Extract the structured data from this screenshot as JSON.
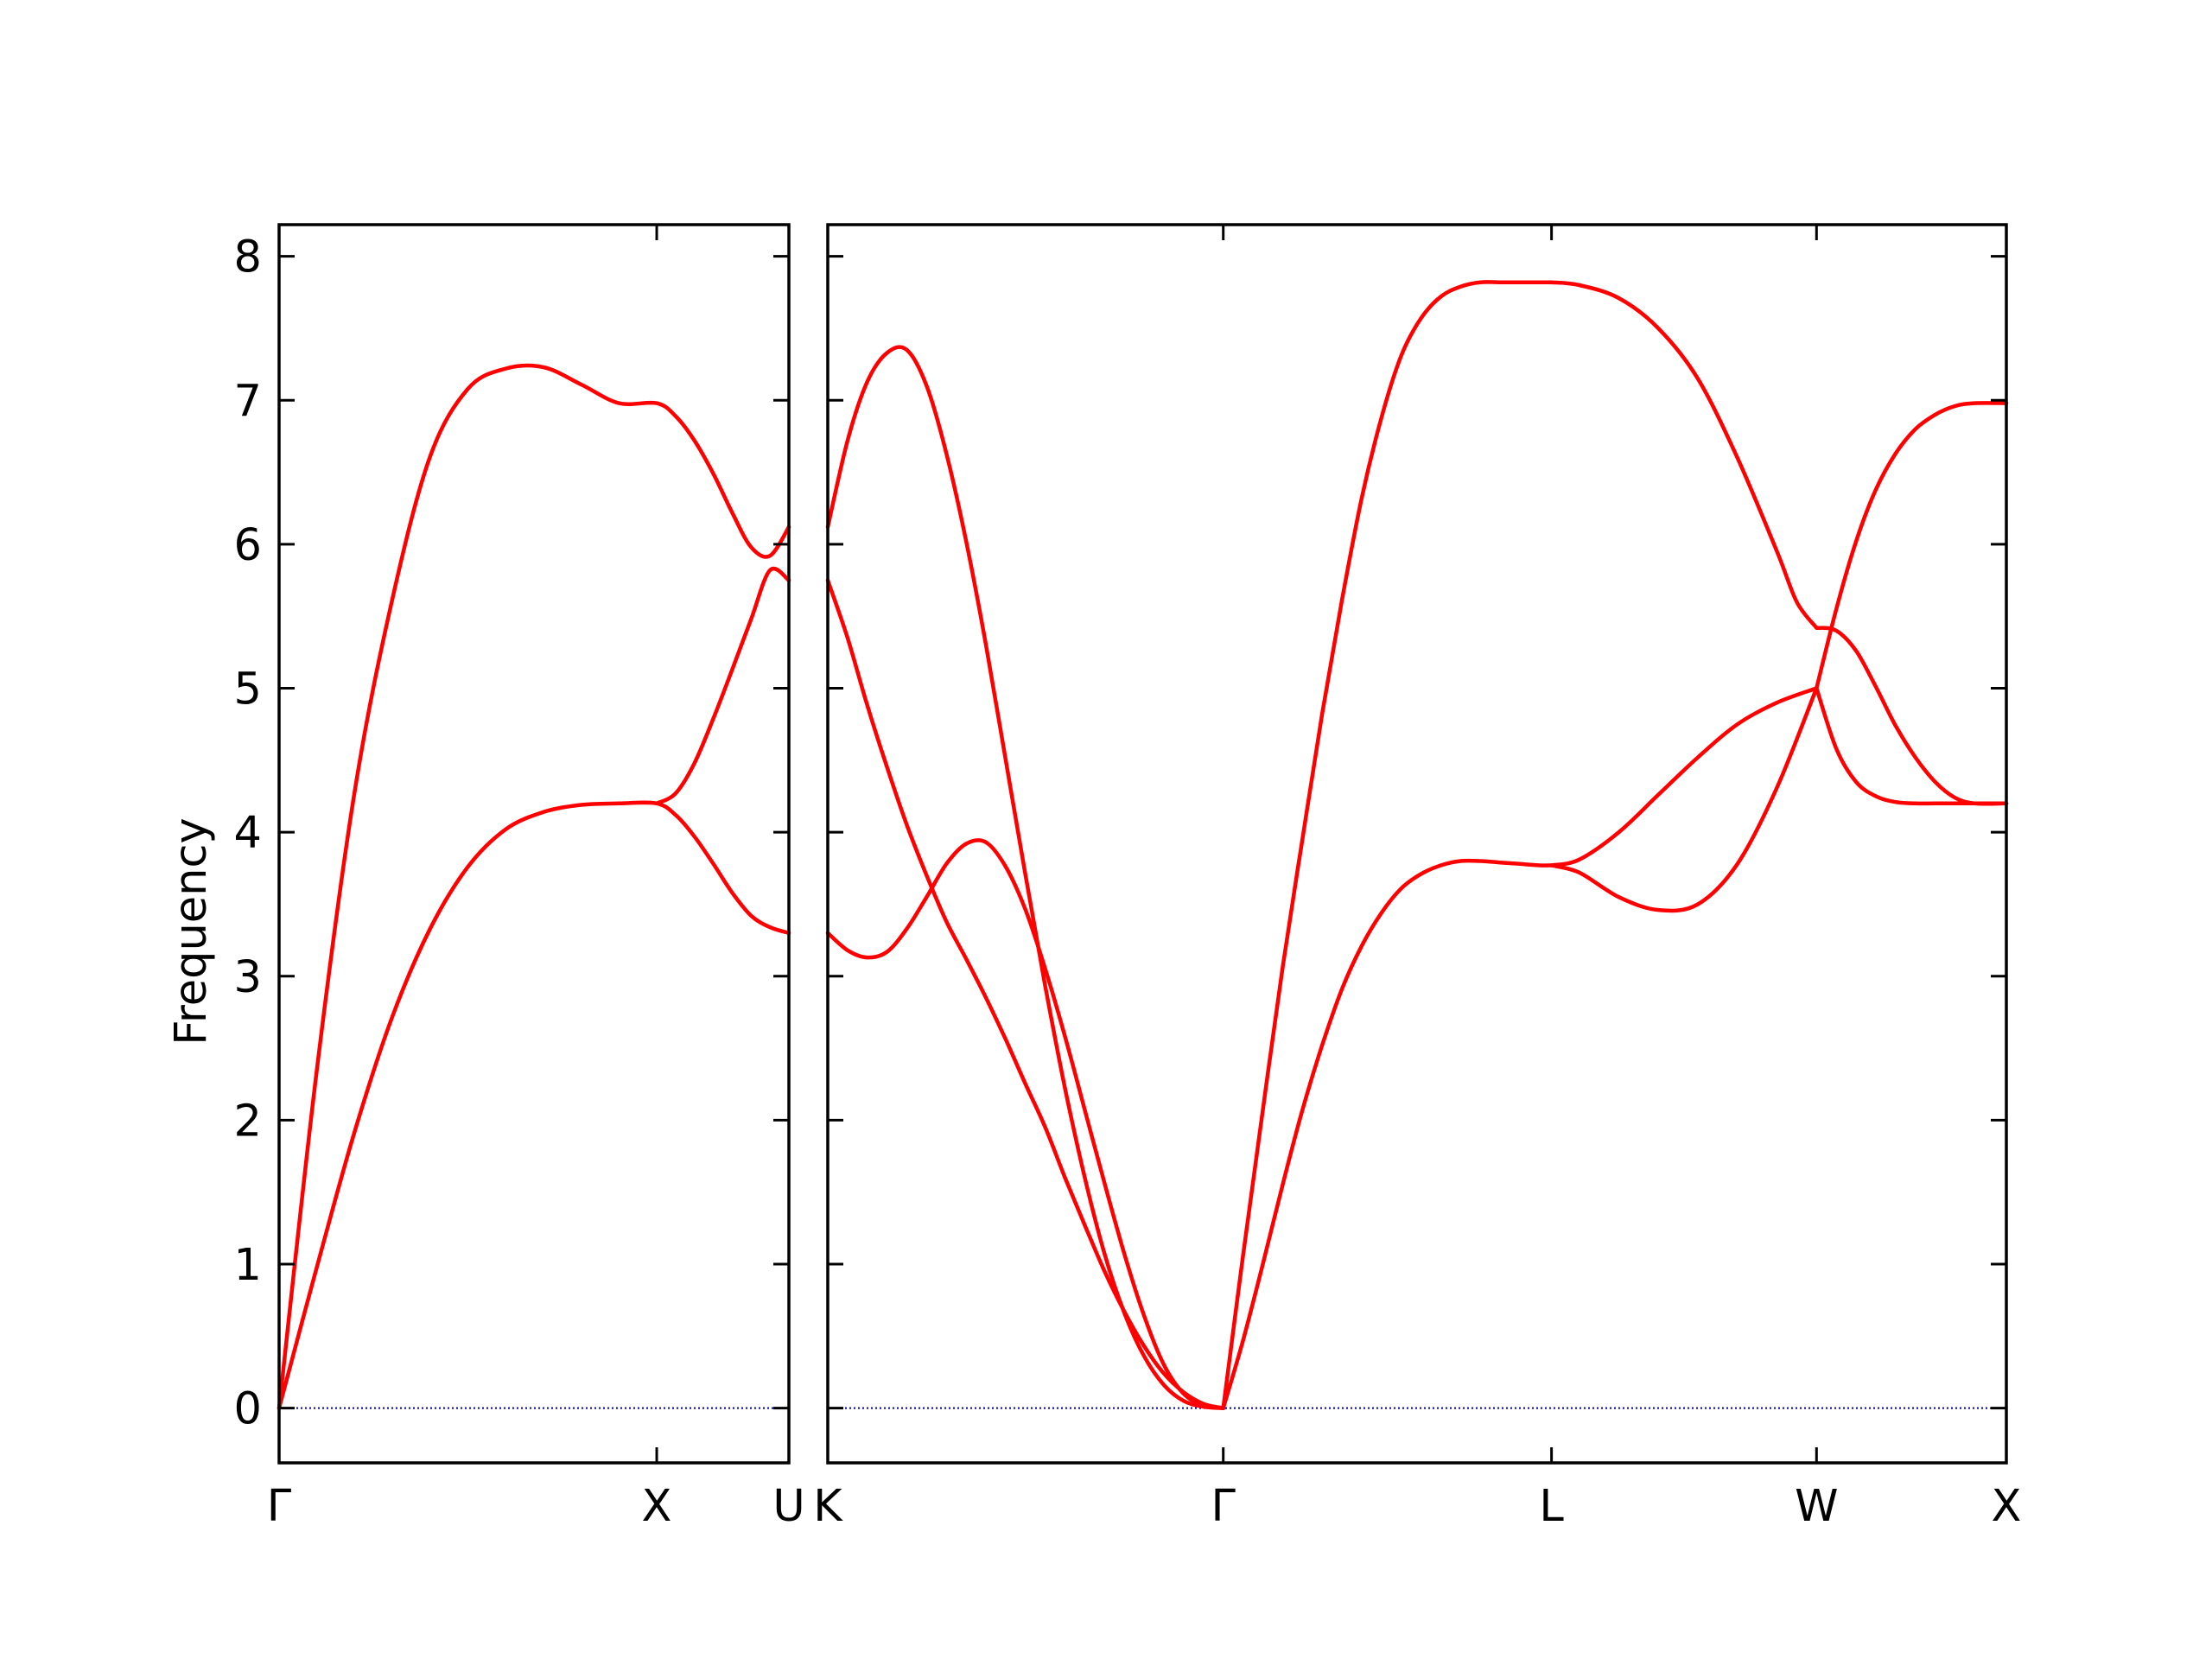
{
  "chart_data": {
    "type": "line",
    "ylabel": "Frequency",
    "ylim": [
      -0.38,
      8.22
    ],
    "yticks": [
      0,
      1,
      2,
      3,
      4,
      5,
      6,
      7,
      8
    ],
    "grid": false,
    "legend": "none",
    "colors": {
      "bands": "#ff0000",
      "zero_line": "#0000aa",
      "axes": "#000000"
    },
    "panels": [
      {
        "xlim": [
          0,
          1.35
        ],
        "xticks": [
          {
            "x": 0,
            "label": "Γ"
          },
          {
            "x": 1.0,
            "label": "X"
          },
          {
            "x": 1.35,
            "label": "U"
          }
        ],
        "series": [
          {
            "x": [
              0,
              0.1,
              0.2,
              0.3,
              0.4,
              0.5,
              0.6,
              0.7,
              0.8,
              0.9,
              1.0,
              1.05,
              1.1,
              1.15,
              1.2,
              1.25,
              1.3,
              1.35
            ],
            "values": [
              0,
              0.98,
              1.92,
              2.72,
              3.33,
              3.76,
              4.02,
              4.14,
              4.19,
              4.2,
              4.2,
              4.12,
              3.97,
              3.78,
              3.58,
              3.42,
              3.34,
              3.3
            ]
          },
          {
            "x": [
              0,
              0.1,
              0.2,
              0.3,
              0.4,
              0.5,
              0.6,
              0.7,
              0.8,
              0.9,
              1.0,
              1.05,
              1.1,
              1.15,
              1.2,
              1.25,
              1.3,
              1.35
            ],
            "values": [
              0,
              2.35,
              4.28,
              5.62,
              6.61,
              7.08,
              7.22,
              7.23,
              7.11,
              6.98,
              6.98,
              6.89,
              6.72,
              6.49,
              6.22,
              5.98,
              5.92,
              6.12
            ]
          },
          {
            "x": [
              1.0,
              1.05,
              1.1,
              1.15,
              1.2,
              1.25,
              1.3,
              1.35
            ],
            "values": [
              4.2,
              4.27,
              4.48,
              4.79,
              5.13,
              5.48,
              5.82,
              5.75
            ]
          }
        ]
      },
      {
        "xlim": [
          0,
          2.98
        ],
        "xticks": [
          {
            "x": 0,
            "label": "K"
          },
          {
            "x": 1.0,
            "label": "Γ"
          },
          {
            "x": 1.83,
            "label": "L"
          },
          {
            "x": 2.5,
            "label": "W"
          },
          {
            "x": 2.98,
            "label": "X"
          }
        ],
        "series": [
          {
            "x": [
              0,
              0.05,
              0.1,
              0.15,
              0.2,
              0.25,
              0.3,
              0.35,
              0.4,
              0.45,
              0.5,
              0.55,
              0.6,
              0.65,
              0.7,
              0.75,
              0.8,
              0.85,
              0.9,
              0.95,
              1.0
            ],
            "values": [
              3.3,
              3.18,
              3.13,
              3.17,
              3.33,
              3.55,
              3.78,
              3.92,
              3.93,
              3.76,
              3.46,
              3.05,
              2.58,
              2.07,
              1.56,
              1.07,
              0.64,
              0.3,
              0.1,
              0.02,
              0
            ]
          },
          {
            "x": [
              0,
              0.05,
              0.1,
              0.15,
              0.2,
              0.25,
              0.3,
              0.35,
              0.4,
              0.45,
              0.5,
              0.55,
              0.6,
              0.65,
              0.7,
              0.75,
              0.8,
              0.85,
              0.9,
              0.95,
              1.0
            ],
            "values": [
              5.75,
              5.35,
              4.88,
              4.45,
              4.05,
              3.7,
              3.38,
              3.12,
              2.85,
              2.56,
              2.25,
              1.95,
              1.6,
              1.27,
              0.95,
              0.67,
              0.43,
              0.24,
              0.11,
              0.03,
              0
            ]
          },
          {
            "x": [
              0,
              0.05,
              0.1,
              0.15,
              0.2,
              0.25,
              0.3,
              0.35,
              0.4,
              0.45,
              0.5,
              0.55,
              0.6,
              0.65,
              0.7,
              0.75,
              0.8,
              0.85,
              0.9,
              0.95,
              1.0
            ],
            "values": [
              6.12,
              6.72,
              7.13,
              7.33,
              7.35,
              7.1,
              6.63,
              6.02,
              5.3,
              4.5,
              3.7,
              2.93,
              2.22,
              1.6,
              1.07,
              0.66,
              0.36,
              0.16,
              0.05,
              0.01,
              0
            ]
          },
          {
            "x": [
              1.0,
              1.05,
              1.1,
              1.15,
              1.2,
              1.25,
              1.3,
              1.35,
              1.4,
              1.45,
              1.5,
              1.55,
              1.6,
              1.65,
              1.7,
              1.75,
              1.8,
              1.83
            ],
            "values": [
              0,
              0.47,
              1.0,
              1.55,
              2.07,
              2.52,
              2.91,
              3.21,
              3.44,
              3.61,
              3.71,
              3.77,
              3.8,
              3.8,
              3.79,
              3.78,
              3.77,
              3.77
            ]
          },
          {
            "x": [
              1.0,
              1.05,
              1.1,
              1.15,
              1.2,
              1.25,
              1.3,
              1.35,
              1.4,
              1.45,
              1.5,
              1.55,
              1.6,
              1.65,
              1.7,
              1.75,
              1.8,
              1.83
            ],
            "values": [
              0,
              1.06,
              2.07,
              3.06,
              3.95,
              4.82,
              5.61,
              6.32,
              6.88,
              7.31,
              7.57,
              7.72,
              7.79,
              7.82,
              7.82,
              7.82,
              7.82,
              7.82
            ]
          },
          {
            "x": [
              1.83,
              1.9,
              2.0,
              2.1,
              2.2,
              2.3,
              2.4,
              2.5
            ],
            "values": [
              3.77,
              3.72,
              3.55,
              3.46,
              3.5,
              3.78,
              4.31,
              5.0
            ]
          },
          {
            "x": [
              1.83,
              1.9,
              2.0,
              2.1,
              2.2,
              2.3,
              2.4,
              2.5
            ],
            "values": [
              3.77,
              3.81,
              4.0,
              4.26,
              4.52,
              4.75,
              4.9,
              5.0
            ]
          },
          {
            "x": [
              1.83,
              1.9,
              2.0,
              2.1,
              2.2,
              2.3,
              2.4,
              2.45,
              2.5
            ],
            "values": [
              7.82,
              7.8,
              7.71,
              7.5,
              7.15,
              6.6,
              5.95,
              5.6,
              5.42
            ]
          },
          {
            "x": [
              2.5,
              2.55,
              2.6,
              2.65,
              2.7,
              2.75,
              2.8,
              2.85,
              2.9,
              2.98
            ],
            "values": [
              5.42,
              5.4,
              5.26,
              5.01,
              4.74,
              4.52,
              4.35,
              4.24,
              4.2,
              4.2
            ]
          },
          {
            "x": [
              2.5,
              2.55,
              2.6,
              2.65,
              2.7,
              2.75,
              2.8,
              2.85,
              2.9,
              2.98
            ],
            "values": [
              5.0,
              5.55,
              6.02,
              6.38,
              6.63,
              6.8,
              6.9,
              6.96,
              6.98,
              6.98
            ]
          },
          {
            "x": [
              2.5,
              2.55,
              2.6,
              2.65,
              2.7,
              2.75,
              2.8,
              2.85,
              2.9,
              2.98
            ],
            "values": [
              5.0,
              4.58,
              4.35,
              4.25,
              4.21,
              4.2,
              4.2,
              4.2,
              4.2,
              4.2
            ]
          }
        ]
      }
    ]
  }
}
